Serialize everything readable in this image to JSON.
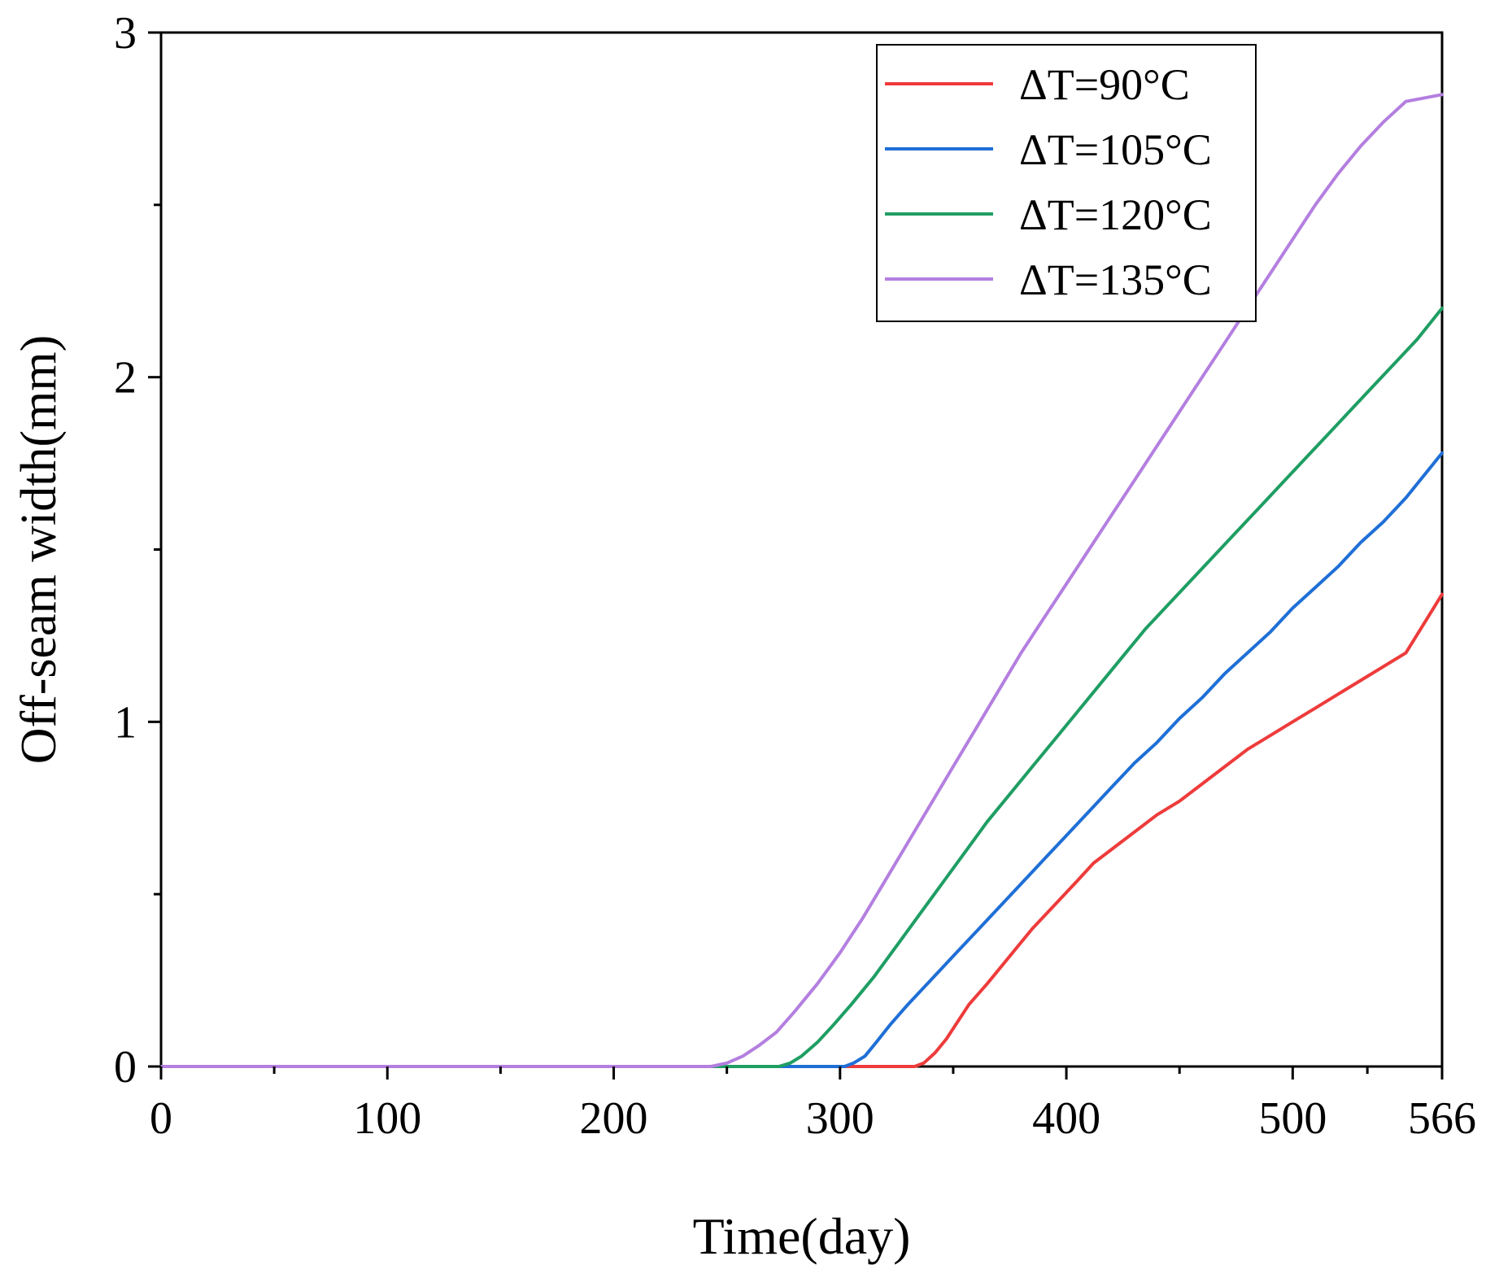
{
  "chart_data": {
    "type": "line",
    "title": "",
    "xlabel": "Time(day)",
    "ylabel": "Off-seam width(mm)",
    "xlim": [
      0,
      566
    ],
    "ylim": [
      0,
      3
    ],
    "x_ticks": [
      0,
      100,
      200,
      300,
      400,
      500,
      566
    ],
    "x_tick_labels": [
      "0",
      "100",
      "200",
      "300",
      "400",
      "500",
      "566"
    ],
    "x_minor_ticks": [
      50,
      150,
      250,
      350,
      450,
      533
    ],
    "y_ticks": [
      0,
      1,
      2,
      3
    ],
    "y_tick_labels": [
      "0",
      "1",
      "2",
      "3"
    ],
    "y_minor_ticks": [
      0.5,
      1.5,
      2.5
    ],
    "grid": false,
    "legend_position": "top-right",
    "series": [
      {
        "name": "ΔT=90°C",
        "color": "#ee3b3b",
        "x": [
          0,
          333,
          337,
          342,
          347,
          352,
          357,
          365,
          375,
          385,
          395,
          405,
          412,
          420,
          430,
          440,
          450,
          460,
          470,
          480,
          490,
          500,
          510,
          520,
          530,
          540,
          550,
          566
        ],
        "y": [
          0,
          0,
          0.01,
          0.04,
          0.08,
          0.13,
          0.18,
          0.24,
          0.32,
          0.4,
          0.47,
          0.54,
          0.59,
          0.63,
          0.68,
          0.73,
          0.77,
          0.82,
          0.87,
          0.92,
          0.96,
          1.0,
          1.04,
          1.08,
          1.12,
          1.16,
          1.2,
          1.37
        ]
      },
      {
        "name": "ΔT=105°C",
        "color": "#1f6fd6",
        "x": [
          0,
          302,
          306,
          311,
          316,
          322,
          330,
          340,
          350,
          360,
          370,
          380,
          390,
          400,
          410,
          420,
          430,
          440,
          450,
          460,
          470,
          480,
          490,
          500,
          510,
          520,
          530,
          540,
          550,
          566
        ],
        "y": [
          0,
          0,
          0.01,
          0.03,
          0.07,
          0.12,
          0.18,
          0.25,
          0.32,
          0.39,
          0.46,
          0.53,
          0.6,
          0.67,
          0.74,
          0.81,
          0.88,
          0.94,
          1.01,
          1.07,
          1.14,
          1.2,
          1.26,
          1.33,
          1.39,
          1.45,
          1.52,
          1.58,
          1.65,
          1.78
        ]
      },
      {
        "name": "ΔT=120°C",
        "color": "#1f9e63",
        "x": [
          0,
          273,
          278,
          283,
          290,
          297,
          305,
          315,
          325,
          335,
          345,
          355,
          365,
          375,
          385,
          395,
          405,
          415,
          425,
          435,
          445,
          455,
          465,
          475,
          485,
          495,
          505,
          515,
          525,
          535,
          545,
          555,
          566
        ],
        "y": [
          0,
          0,
          0.01,
          0.03,
          0.07,
          0.12,
          0.18,
          0.26,
          0.35,
          0.44,
          0.53,
          0.62,
          0.71,
          0.79,
          0.87,
          0.95,
          1.03,
          1.11,
          1.19,
          1.27,
          1.34,
          1.41,
          1.48,
          1.55,
          1.62,
          1.69,
          1.76,
          1.83,
          1.9,
          1.97,
          2.04,
          2.11,
          2.2
        ]
      },
      {
        "name": "ΔT=135°C",
        "color": "#b47fe0",
        "x": [
          0,
          243,
          250,
          257,
          264,
          272,
          280,
          290,
          300,
          310,
          320,
          330,
          340,
          350,
          360,
          370,
          380,
          390,
          400,
          410,
          420,
          430,
          440,
          450,
          460,
          470,
          480,
          490,
          500,
          510,
          520,
          530,
          540,
          550,
          566
        ],
        "y": [
          0,
          0,
          0.01,
          0.03,
          0.06,
          0.1,
          0.16,
          0.24,
          0.33,
          0.43,
          0.54,
          0.65,
          0.76,
          0.87,
          0.98,
          1.09,
          1.2,
          1.3,
          1.4,
          1.5,
          1.6,
          1.7,
          1.8,
          1.9,
          2.0,
          2.1,
          2.2,
          2.3,
          2.4,
          2.5,
          2.59,
          2.67,
          2.74,
          2.8,
          2.82
        ]
      }
    ]
  }
}
